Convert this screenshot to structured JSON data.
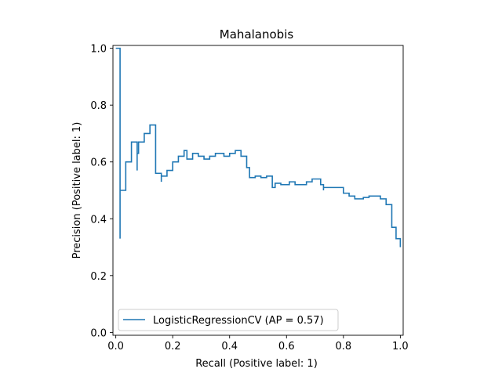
{
  "chart_data": {
    "type": "line",
    "drawstyle": "steps-post",
    "title": "Mahalanobis",
    "xlabel": "Recall (Positive label: 1)",
    "ylabel": "Precision (Positive label: 1)",
    "xlim": [
      -0.01,
      1.01
    ],
    "ylim": [
      -0.01,
      1.01
    ],
    "xticks": [
      0.0,
      0.2,
      0.4,
      0.6,
      0.8,
      1.0
    ],
    "yticks": [
      0.0,
      0.2,
      0.4,
      0.6,
      0.8,
      1.0
    ],
    "xtick_labels": [
      "0.0",
      "0.2",
      "0.4",
      "0.6",
      "0.8",
      "1.0"
    ],
    "ytick_labels": [
      "0.0",
      "0.2",
      "0.4",
      "0.6",
      "0.8",
      "1.0"
    ],
    "grid": false,
    "legend": {
      "location": "lower-left"
    },
    "series": [
      {
        "name": "LogisticRegressionCV (AP = 0.57)",
        "color": "#1f77b4",
        "points": [
          [
            1.0,
            0.3
          ],
          [
            1.0,
            0.33
          ],
          [
            0.985,
            0.33
          ],
          [
            0.985,
            0.37
          ],
          [
            0.97,
            0.37
          ],
          [
            0.97,
            0.45
          ],
          [
            0.95,
            0.45
          ],
          [
            0.95,
            0.47
          ],
          [
            0.93,
            0.47
          ],
          [
            0.93,
            0.48
          ],
          [
            0.89,
            0.48
          ],
          [
            0.89,
            0.475
          ],
          [
            0.87,
            0.475
          ],
          [
            0.87,
            0.47
          ],
          [
            0.84,
            0.47
          ],
          [
            0.84,
            0.48
          ],
          [
            0.82,
            0.48
          ],
          [
            0.82,
            0.49
          ],
          [
            0.8,
            0.49
          ],
          [
            0.8,
            0.51
          ],
          [
            0.73,
            0.51
          ],
          [
            0.73,
            0.5
          ],
          [
            0.73,
            0.52
          ],
          [
            0.72,
            0.52
          ],
          [
            0.72,
            0.54
          ],
          [
            0.69,
            0.54
          ],
          [
            0.69,
            0.53
          ],
          [
            0.67,
            0.53
          ],
          [
            0.67,
            0.52
          ],
          [
            0.63,
            0.52
          ],
          [
            0.63,
            0.53
          ],
          [
            0.61,
            0.53
          ],
          [
            0.61,
            0.52
          ],
          [
            0.58,
            0.52
          ],
          [
            0.58,
            0.525
          ],
          [
            0.56,
            0.525
          ],
          [
            0.56,
            0.51
          ],
          [
            0.55,
            0.51
          ],
          [
            0.55,
            0.55
          ],
          [
            0.53,
            0.55
          ],
          [
            0.53,
            0.545
          ],
          [
            0.51,
            0.545
          ],
          [
            0.51,
            0.55
          ],
          [
            0.49,
            0.55
          ],
          [
            0.49,
            0.545
          ],
          [
            0.47,
            0.545
          ],
          [
            0.47,
            0.58
          ],
          [
            0.46,
            0.58
          ],
          [
            0.46,
            0.62
          ],
          [
            0.44,
            0.62
          ],
          [
            0.44,
            0.64
          ],
          [
            0.42,
            0.64
          ],
          [
            0.42,
            0.63
          ],
          [
            0.4,
            0.63
          ],
          [
            0.4,
            0.62
          ],
          [
            0.38,
            0.62
          ],
          [
            0.38,
            0.63
          ],
          [
            0.35,
            0.63
          ],
          [
            0.35,
            0.62
          ],
          [
            0.33,
            0.62
          ],
          [
            0.33,
            0.61
          ],
          [
            0.31,
            0.61
          ],
          [
            0.31,
            0.62
          ],
          [
            0.29,
            0.62
          ],
          [
            0.29,
            0.63
          ],
          [
            0.27,
            0.63
          ],
          [
            0.27,
            0.61
          ],
          [
            0.25,
            0.61
          ],
          [
            0.25,
            0.64
          ],
          [
            0.24,
            0.64
          ],
          [
            0.24,
            0.62
          ],
          [
            0.22,
            0.62
          ],
          [
            0.22,
            0.6
          ],
          [
            0.2,
            0.6
          ],
          [
            0.2,
            0.57
          ],
          [
            0.18,
            0.57
          ],
          [
            0.18,
            0.55
          ],
          [
            0.16,
            0.55
          ],
          [
            0.16,
            0.53
          ],
          [
            0.16,
            0.56
          ],
          [
            0.14,
            0.56
          ],
          [
            0.14,
            0.73
          ],
          [
            0.12,
            0.73
          ],
          [
            0.12,
            0.7
          ],
          [
            0.1,
            0.7
          ],
          [
            0.1,
            0.67
          ],
          [
            0.08,
            0.67
          ],
          [
            0.08,
            0.63
          ],
          [
            0.075,
            0.63
          ],
          [
            0.075,
            0.57
          ],
          [
            0.075,
            0.67
          ],
          [
            0.055,
            0.67
          ],
          [
            0.055,
            0.6
          ],
          [
            0.035,
            0.6
          ],
          [
            0.035,
            0.5
          ],
          [
            0.015,
            0.5
          ],
          [
            0.015,
            0.33
          ],
          [
            0.015,
            1.0
          ],
          [
            0.0,
            1.0
          ]
        ]
      }
    ]
  }
}
